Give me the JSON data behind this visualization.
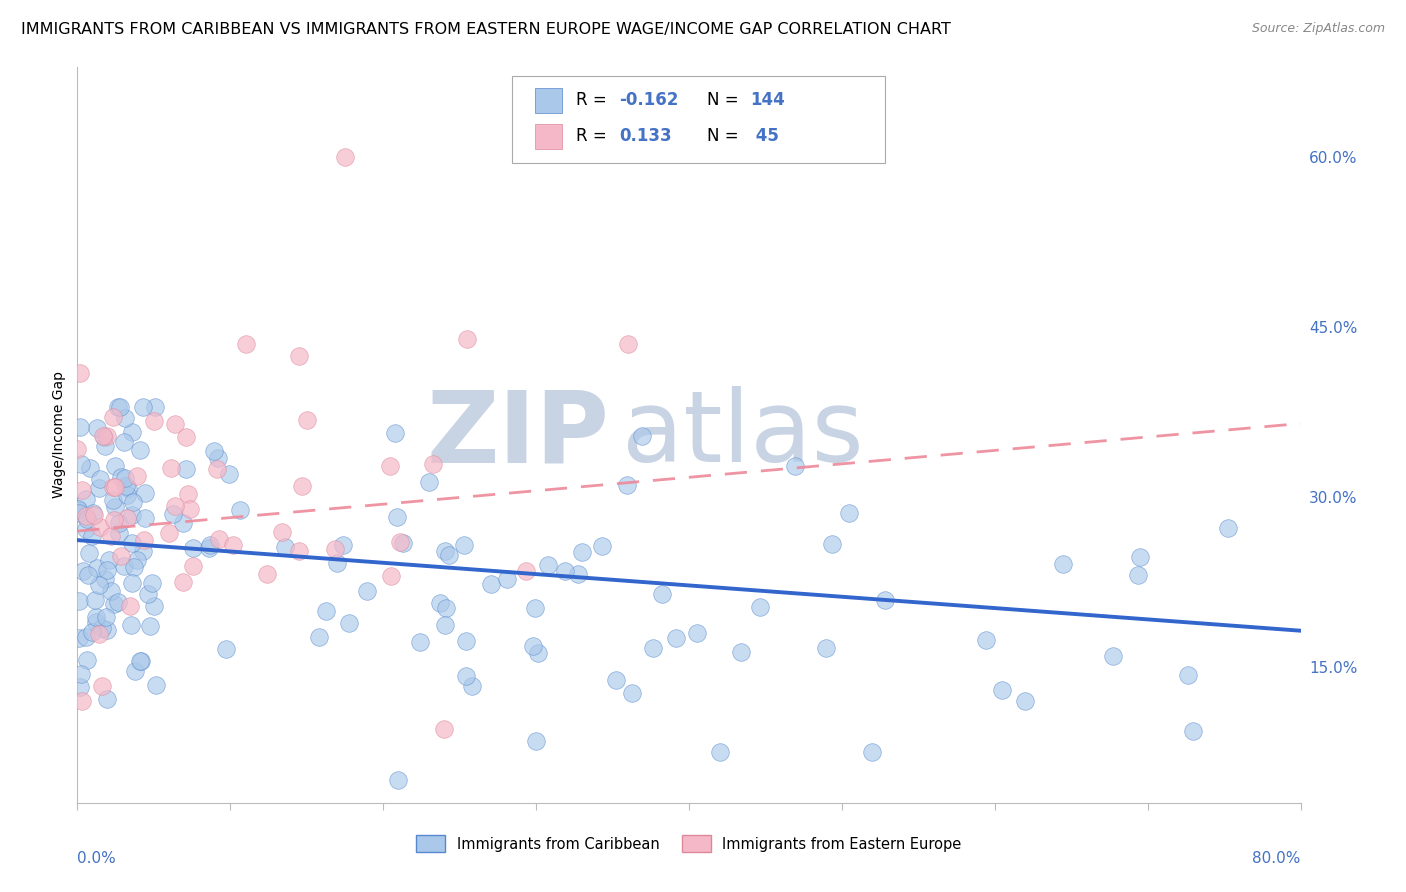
{
  "title": "IMMIGRANTS FROM CARIBBEAN VS IMMIGRANTS FROM EASTERN EUROPE WAGE/INCOME GAP CORRELATION CHART",
  "source": "Source: ZipAtlas.com",
  "ylabel": "Wage/Income Gap",
  "ytick_labels": [
    "15.0%",
    "30.0%",
    "45.0%",
    "60.0%"
  ],
  "ytick_vals": [
    0.15,
    0.3,
    0.45,
    0.6
  ],
  "xlim": [
    0.0,
    0.8
  ],
  "ylim": [
    0.03,
    0.68
  ],
  "color_blue": "#aac8ea",
  "color_pink": "#f5b8c8",
  "edge_blue": "#5588cc",
  "edge_pink": "#dd8899",
  "line_blue": "#3366cc",
  "line_pink": "#ee8899",
  "blue_r": -0.162,
  "blue_n": 144,
  "pink_r": 0.133,
  "pink_n": 45,
  "blue_line_x0": 0.0,
  "blue_line_x1": 0.8,
  "blue_line_y0": 0.262,
  "blue_line_y1": 0.182,
  "pink_line_x0": 0.0,
  "pink_line_x1": 0.8,
  "pink_line_y0": 0.27,
  "pink_line_y1": 0.365,
  "title_fontsize": 11.5,
  "tick_fontsize": 11,
  "ylabel_fontsize": 10,
  "source_fontsize": 9,
  "tick_label_color": "#4472c4",
  "legend_line1_r": "R = -0.162",
  "legend_line1_n": "N = 144",
  "legend_line2_r": "R =  0.133",
  "legend_line2_n": "N =  45",
  "bottom_legend_1": "Immigrants from Caribbean",
  "bottom_legend_2": "Immigrants from Eastern Europe"
}
